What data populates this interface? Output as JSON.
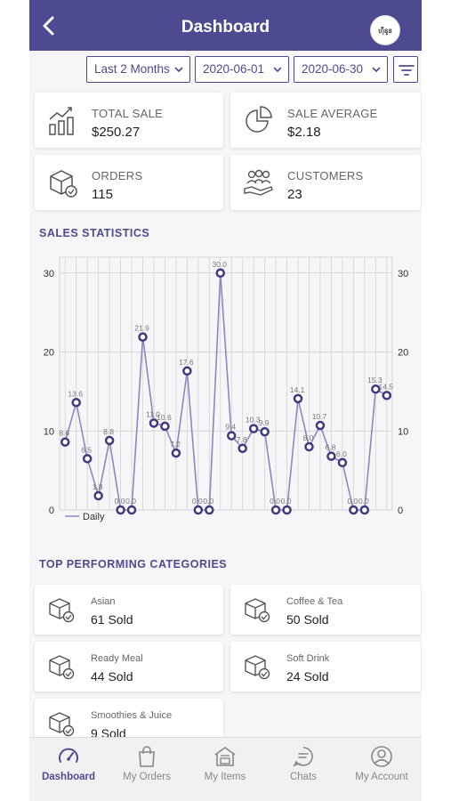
{
  "header": {
    "title": "Dashboard",
    "avatar_text": "ហ៊ឺនូន"
  },
  "filters": {
    "range": "Last 2 Months",
    "start_date": "2020-06-01",
    "end_date": "2020-06-30"
  },
  "summary": {
    "total_sale": {
      "label": "TOTAL SALE",
      "value": "$250.27"
    },
    "sale_average": {
      "label": "SALE AVERAGE",
      "value": "$2.18"
    },
    "orders": {
      "label": "ORDERS",
      "value": "115"
    },
    "customers": {
      "label": "CUSTOMERS",
      "value": "23"
    }
  },
  "sales_statistics": {
    "title": "SALES STATISTICS"
  },
  "chart_data": {
    "type": "line",
    "x": [
      1,
      2,
      3,
      4,
      5,
      6,
      7,
      8,
      9,
      10,
      11,
      12,
      13,
      14,
      15,
      16,
      17,
      18,
      19,
      20,
      21,
      22,
      23,
      24,
      25,
      26,
      27,
      28,
      29,
      30
    ],
    "series": [
      {
        "name": "Daily",
        "values": [
          8.6,
          13.6,
          6.5,
          1.8,
          8.8,
          0.0,
          0.0,
          21.9,
          11.0,
          10.6,
          7.2,
          17.6,
          0.0,
          0.0,
          30.0,
          9.4,
          7.8,
          10.3,
          9.9,
          0.0,
          0.0,
          14.1,
          8.0,
          10.7,
          6.8,
          6.0,
          0.0,
          0.0,
          15.3,
          14.5
        ]
      }
    ],
    "value_labels": [
      "8.6",
      "13.6",
      "6.5",
      "1.8",
      "8.8",
      "0.0",
      "0.0",
      "21.9",
      "11.0",
      "10.6",
      "7.2",
      "17.6",
      "0.0",
      "0.0",
      "30.0",
      "9.4",
      "7.8",
      "10.3",
      "9.9",
      "0.0",
      "0.0",
      "14.1",
      "8.0",
      "10.7",
      "6.8",
      "6.0",
      "0.0",
      "0.0",
      "15.3",
      "14.5"
    ],
    "y_ticks": [
      "0",
      "10",
      "20",
      "30"
    ],
    "ylim": [
      0,
      32
    ],
    "grid": true,
    "legend_position": "bottom-left",
    "colors": {
      "line": "#8a88c0",
      "point": "#3f3a80",
      "grid": "#d4d4d4"
    }
  },
  "top_categories": {
    "title": "TOP PERFORMING CATEGORIES",
    "items": [
      {
        "name": "Asian",
        "sold": "61 Sold"
      },
      {
        "name": "Coffee & Tea",
        "sold": "50 Sold"
      },
      {
        "name": "Ready Meal",
        "sold": "44 Sold"
      },
      {
        "name": "Soft Drink",
        "sold": "24 Sold"
      },
      {
        "name": "Smoothies & Juice",
        "sold": "9 Sold"
      }
    ]
  },
  "nav": {
    "items": [
      {
        "label": "Dashboard",
        "icon": "dashboard-icon",
        "active": true
      },
      {
        "label": "My Orders",
        "icon": "shopping-bag-icon",
        "active": false
      },
      {
        "label": "My Items",
        "icon": "store-icon",
        "active": false
      },
      {
        "label": "Chats",
        "icon": "chat-icon",
        "active": false
      },
      {
        "label": "My Account",
        "icon": "account-icon",
        "active": false
      }
    ]
  },
  "colors": {
    "primary": "#4e4a91",
    "background": "#f6f6f8"
  }
}
